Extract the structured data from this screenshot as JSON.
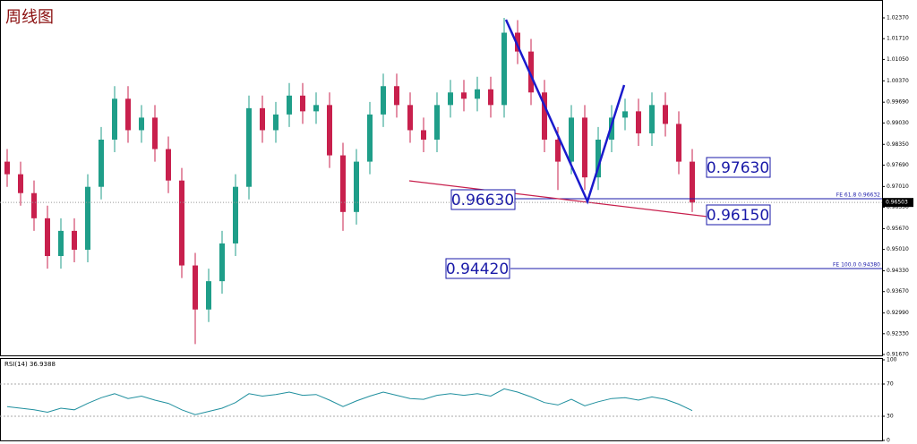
{
  "chart_data": {
    "type": "candlestick",
    "title": "周线图",
    "open": [
      0.978,
      0.974,
      0.968,
      0.96,
      0.948,
      0.956,
      0.95,
      0.97,
      0.985,
      0.998,
      0.988,
      0.992,
      0.982,
      0.972,
      0.945,
      0.931,
      0.94,
      0.952,
      0.97,
      0.995,
      0.988,
      0.993,
      0.999,
      0.994,
      0.996,
      0.98,
      0.962,
      0.978,
      0.993,
      1.002,
      0.996,
      0.988,
      0.985,
      0.996,
      1.0,
      0.998,
      1.001,
      0.996,
      1.019,
      1.013,
      1.0,
      0.985,
      0.978,
      0.992,
      0.973,
      0.985,
      0.992,
      0.994,
      0.987,
      0.996,
      0.99,
      0.978
    ],
    "high": [
      0.982,
      0.978,
      0.972,
      0.964,
      0.96,
      0.96,
      0.974,
      0.989,
      1.002,
      1.002,
      0.996,
      0.996,
      0.986,
      0.976,
      0.949,
      0.944,
      0.956,
      0.974,
      0.999,
      0.999,
      0.997,
      1.003,
      1.003,
      1.0,
      1.0,
      0.984,
      0.982,
      0.997,
      1.006,
      1.006,
      1.0,
      0.992,
      1.0,
      1.004,
      1.004,
      1.005,
      1.005,
      1.0237,
      1.023,
      1.017,
      1.004,
      0.989,
      0.996,
      0.996,
      0.989,
      0.996,
      0.998,
      0.998,
      1.0,
      1.0,
      0.994,
      0.982
    ],
    "low": [
      0.97,
      0.964,
      0.956,
      0.944,
      0.944,
      0.946,
      0.946,
      0.966,
      0.981,
      0.984,
      0.984,
      0.978,
      0.968,
      0.941,
      0.92,
      0.927,
      0.936,
      0.948,
      0.966,
      0.984,
      0.984,
      0.989,
      0.99,
      0.99,
      0.976,
      0.956,
      0.958,
      0.974,
      0.989,
      0.992,
      0.984,
      0.981,
      0.981,
      0.992,
      0.994,
      0.994,
      0.992,
      0.992,
      1.009,
      0.996,
      0.981,
      0.969,
      0.974,
      0.969,
      0.969,
      0.981,
      0.988,
      0.983,
      0.983,
      0.986,
      0.974,
      0.962
    ],
    "close": [
      0.974,
      0.968,
      0.96,
      0.948,
      0.956,
      0.95,
      0.97,
      0.985,
      0.998,
      0.988,
      0.992,
      0.982,
      0.972,
      0.945,
      0.931,
      0.94,
      0.952,
      0.97,
      0.995,
      0.988,
      0.993,
      0.999,
      0.994,
      0.996,
      0.98,
      0.962,
      0.978,
      0.993,
      1.002,
      0.996,
      0.988,
      0.985,
      0.996,
      1.0,
      0.998,
      1.001,
      0.996,
      1.019,
      1.013,
      1.0,
      0.985,
      0.978,
      0.992,
      0.973,
      0.985,
      0.992,
      0.994,
      0.987,
      0.996,
      0.99,
      0.978,
      0.965
    ],
    "up_color": "#1f9e89",
    "down_color": "#c8204d",
    "ylim": [
      0.9167,
      1.0237
    ],
    "yticks": [
      {
        "value": 1.0237,
        "label": "1.02370"
      },
      {
        "value": 1.0171,
        "label": "1.01710"
      },
      {
        "value": 1.0105,
        "label": "1.01050"
      },
      {
        "value": 1.0037,
        "label": "1.00370"
      },
      {
        "value": 0.9969,
        "label": "0.99690"
      },
      {
        "value": 0.9903,
        "label": "0.99030"
      },
      {
        "value": 0.9835,
        "label": "0.98350"
      },
      {
        "value": 0.9769,
        "label": "0.97690"
      },
      {
        "value": 0.9701,
        "label": "0.97010"
      },
      {
        "value": 0.9635,
        "label": "0.96350"
      },
      {
        "value": 0.9567,
        "label": "0.95670"
      },
      {
        "value": 0.9501,
        "label": "0.95010"
      },
      {
        "value": 0.9433,
        "label": "0.94330"
      },
      {
        "value": 0.9367,
        "label": "0.93670"
      },
      {
        "value": 0.9299,
        "label": "0.92990"
      },
      {
        "value": 0.9233,
        "label": "0.92330"
      },
      {
        "value": 0.9167,
        "label": "0.91670"
      }
    ],
    "current_price": {
      "value": 0.96503,
      "label": "0.96503"
    },
    "annotations": [
      "0.97630",
      "0.96630",
      "0.96150",
      "0.94420",
      "FE 61.8  0.96632",
      "FE 100.0  0.94380"
    ],
    "rsi": {
      "label": "RSI(14) 36.9388",
      "color": "#1f8f9e",
      "values": [
        42,
        40,
        38,
        35,
        40,
        38,
        46,
        53,
        58,
        52,
        55,
        50,
        46,
        38,
        32,
        36,
        40,
        47,
        58,
        55,
        57,
        60,
        56,
        57,
        50,
        42,
        49,
        55,
        60,
        56,
        52,
        51,
        56,
        58,
        56,
        58,
        55,
        64,
        60,
        54,
        47,
        44,
        51,
        43,
        48,
        52,
        53,
        50,
        54,
        51,
        45,
        37
      ],
      "ylim": [
        0,
        100
      ],
      "yticks": [
        100,
        70,
        30,
        0
      ]
    }
  }
}
